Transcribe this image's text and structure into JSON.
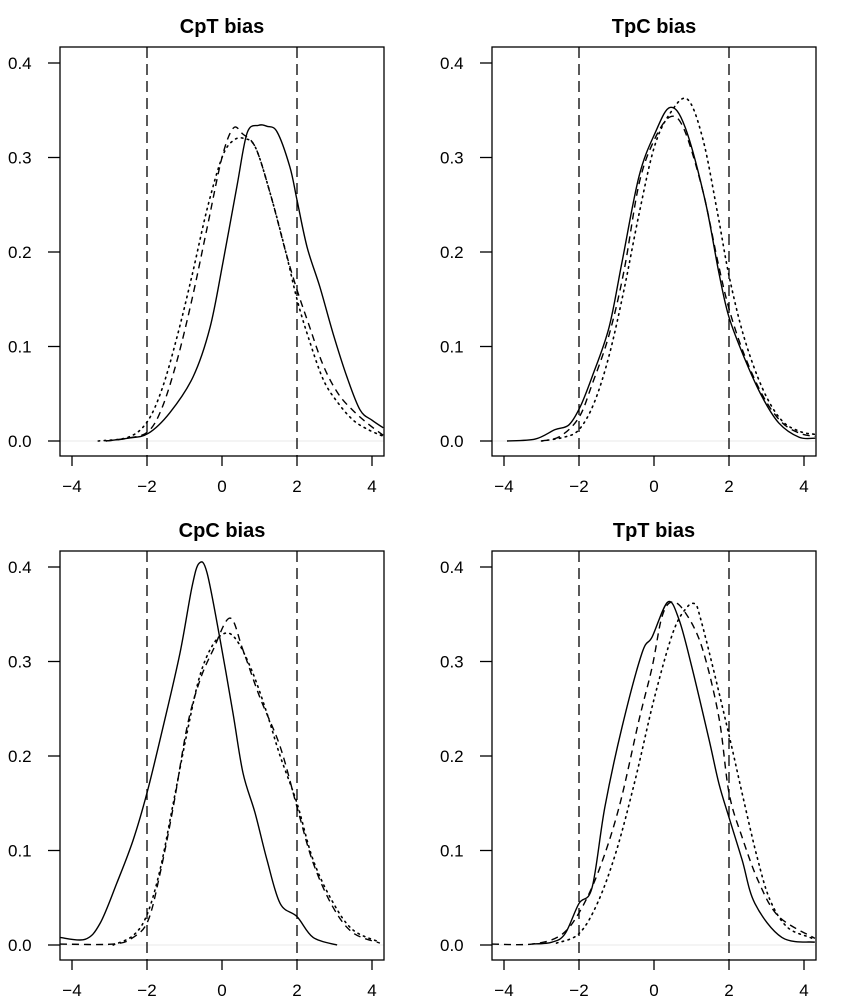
{
  "figure": {
    "layout": "2x2 panels"
  },
  "chart_data": [
    {
      "type": "line",
      "title": "CpT bias",
      "xlabel": "",
      "ylabel": "",
      "xlim": [
        -4.3,
        4.3
      ],
      "ylim": [
        -0.015,
        0.415
      ],
      "x_ticks": [
        -4,
        -2,
        0,
        2,
        4
      ],
      "x_tick_labels": [
        "−4",
        "−2",
        "0",
        "2",
        "4"
      ],
      "y_ticks": [
        0.0,
        0.1,
        0.2,
        0.3,
        0.4
      ],
      "y_tick_labels": [
        "0.0",
        "0.1",
        "0.2",
        "0.3",
        "0.4"
      ],
      "reference_lines": [
        -2,
        2
      ],
      "grid": false,
      "legend": "none",
      "series": [
        {
          "name": "solid",
          "style": "solid",
          "x": [
            -3.1,
            -2.5,
            -1.97,
            -1.39,
            -0.77,
            -0.32,
            0.03,
            0.4,
            0.67,
            0.97,
            1.2,
            1.47,
            1.81,
            2.0,
            2.27,
            2.61,
            2.96,
            3.33,
            3.68,
            4.0,
            4.3
          ],
          "y": [
            0.0,
            0.003,
            0.008,
            0.03,
            0.068,
            0.12,
            0.19,
            0.27,
            0.326,
            0.334,
            0.333,
            0.327,
            0.29,
            0.255,
            0.205,
            0.163,
            0.114,
            0.068,
            0.033,
            0.022,
            0.014
          ]
        },
        {
          "name": "dashed",
          "style": "dashed",
          "x": [
            -3.1,
            -2.5,
            -1.97,
            -1.6,
            -1.2,
            -0.8,
            -0.4,
            0.0,
            0.3,
            0.55,
            0.9,
            1.3,
            1.7,
            2.0,
            2.3,
            2.7,
            3.1,
            3.5,
            3.9,
            4.3
          ],
          "y": [
            0.0,
            0.003,
            0.01,
            0.035,
            0.085,
            0.15,
            0.225,
            0.3,
            0.331,
            0.325,
            0.31,
            0.26,
            0.2,
            0.16,
            0.125,
            0.08,
            0.05,
            0.032,
            0.018,
            0.006
          ]
        },
        {
          "name": "dotted",
          "style": "dotted",
          "x": [
            -3.3,
            -2.5,
            -2.0,
            -1.6,
            -1.2,
            -0.8,
            -0.4,
            0.0,
            0.3,
            0.6,
            0.9,
            1.3,
            1.7,
            2.0,
            2.3,
            2.7,
            3.1,
            3.5,
            3.9,
            4.3
          ],
          "y": [
            0.0,
            0.004,
            0.02,
            0.055,
            0.11,
            0.175,
            0.245,
            0.3,
            0.318,
            0.32,
            0.31,
            0.26,
            0.2,
            0.15,
            0.11,
            0.065,
            0.04,
            0.022,
            0.012,
            0.005
          ]
        }
      ]
    },
    {
      "type": "line",
      "title": "TpC bias",
      "xlabel": "",
      "ylabel": "",
      "xlim": [
        -4.3,
        4.3
      ],
      "ylim": [
        -0.015,
        0.415
      ],
      "x_ticks": [
        -4,
        -2,
        0,
        2,
        4
      ],
      "x_tick_labels": [
        "−4",
        "−2",
        "0",
        "2",
        "4"
      ],
      "y_ticks": [
        0.0,
        0.1,
        0.2,
        0.3,
        0.4
      ],
      "y_tick_labels": [
        "0.0",
        "0.1",
        "0.2",
        "0.3",
        "0.4"
      ],
      "reference_lines": [
        -2,
        2
      ],
      "grid": false,
      "legend": "none",
      "series": [
        {
          "name": "solid",
          "style": "solid",
          "x": [
            -3.92,
            -3.17,
            -2.64,
            -2.27,
            -1.97,
            -1.65,
            -1.2,
            -0.85,
            -0.4,
            0.03,
            0.43,
            0.83,
            1.36,
            1.73,
            2.0,
            2.43,
            2.88,
            3.33,
            3.87,
            4.3
          ],
          "y": [
            0.0,
            0.002,
            0.012,
            0.017,
            0.036,
            0.068,
            0.12,
            0.19,
            0.28,
            0.326,
            0.353,
            0.332,
            0.255,
            0.178,
            0.131,
            0.086,
            0.047,
            0.019,
            0.004,
            0.003
          ]
        },
        {
          "name": "dashed",
          "style": "dashed",
          "x": [
            -3.0,
            -2.5,
            -2.0,
            -1.65,
            -1.2,
            -0.8,
            -0.4,
            0.0,
            0.43,
            0.8,
            1.3,
            1.7,
            2.0,
            2.4,
            2.9,
            3.4,
            3.9,
            4.3
          ],
          "y": [
            0.0,
            0.005,
            0.025,
            0.06,
            0.112,
            0.18,
            0.272,
            0.318,
            0.343,
            0.33,
            0.265,
            0.19,
            0.14,
            0.092,
            0.048,
            0.02,
            0.008,
            0.005
          ]
        },
        {
          "name": "dotted",
          "style": "dotted",
          "x": [
            -3.0,
            -2.4,
            -2.0,
            -1.6,
            -1.2,
            -0.8,
            -0.4,
            0.0,
            0.4,
            0.88,
            1.3,
            1.7,
            2.0,
            2.4,
            2.9,
            3.4,
            3.9,
            4.3
          ],
          "y": [
            0.0,
            0.004,
            0.012,
            0.04,
            0.09,
            0.16,
            0.24,
            0.31,
            0.345,
            0.362,
            0.32,
            0.24,
            0.175,
            0.11,
            0.055,
            0.022,
            0.01,
            0.007
          ]
        }
      ]
    },
    {
      "type": "line",
      "title": "CpC bias",
      "xlabel": "",
      "ylabel": "",
      "xlim": [
        -4.3,
        4.3
      ],
      "ylim": [
        -0.015,
        0.415
      ],
      "x_ticks": [
        -4,
        -2,
        0,
        2,
        4
      ],
      "x_tick_labels": [
        "−4",
        "−2",
        "0",
        "2",
        "4"
      ],
      "y_ticks": [
        0.0,
        0.1,
        0.2,
        0.3,
        0.4
      ],
      "y_tick_labels": [
        "0.0",
        "0.1",
        "0.2",
        "0.3",
        "0.4"
      ],
      "reference_lines": [
        -2,
        2
      ],
      "grid": false,
      "legend": "none",
      "series": [
        {
          "name": "solid",
          "style": "solid",
          "x": [
            -4.32,
            -3.65,
            -3.25,
            -2.8,
            -2.37,
            -2.0,
            -1.57,
            -1.12,
            -0.8,
            -0.61,
            -0.4,
            -0.05,
            0.29,
            0.56,
            0.88,
            1.2,
            1.55,
            2.0,
            2.43,
            3.07
          ],
          "y": [
            0.008,
            0.006,
            0.023,
            0.066,
            0.111,
            0.161,
            0.231,
            0.309,
            0.379,
            0.404,
            0.394,
            0.323,
            0.246,
            0.182,
            0.14,
            0.09,
            0.044,
            0.03,
            0.008,
            0.0
          ]
        },
        {
          "name": "dashed",
          "style": "dashed",
          "x": [
            -4.32,
            -2.9,
            -2.37,
            -1.97,
            -1.65,
            -1.3,
            -0.93,
            -0.59,
            -0.24,
            0.21,
            0.56,
            1.01,
            1.55,
            2.0,
            2.43,
            2.96,
            3.49,
            4.21
          ],
          "y": [
            0.001,
            0.001,
            0.008,
            0.026,
            0.076,
            0.146,
            0.231,
            0.28,
            0.312,
            0.346,
            0.312,
            0.262,
            0.21,
            0.146,
            0.087,
            0.04,
            0.013,
            0.002
          ]
        },
        {
          "name": "dotted",
          "style": "dotted",
          "x": [
            -2.9,
            -2.37,
            -2.0,
            -1.65,
            -1.3,
            -0.93,
            -0.59,
            -0.24,
            0.1,
            0.4,
            0.8,
            1.2,
            1.55,
            2.0,
            2.43,
            2.96,
            3.49,
            4.21
          ],
          "y": [
            0.0,
            0.01,
            0.032,
            0.08,
            0.15,
            0.225,
            0.285,
            0.318,
            0.33,
            0.322,
            0.29,
            0.245,
            0.2,
            0.15,
            0.09,
            0.045,
            0.016,
            0.003
          ]
        }
      ]
    },
    {
      "type": "line",
      "title": "TpT bias",
      "xlabel": "",
      "ylabel": "",
      "xlim": [
        -4.3,
        4.3
      ],
      "ylim": [
        -0.015,
        0.415
      ],
      "x_ticks": [
        -4,
        -2,
        0,
        2,
        4
      ],
      "x_tick_labels": [
        "−4",
        "−2",
        "0",
        "2",
        "4"
      ],
      "y_ticks": [
        0.0,
        0.1,
        0.2,
        0.3,
        0.4
      ],
      "y_tick_labels": [
        "0.0",
        "0.1",
        "0.2",
        "0.3",
        "0.4"
      ],
      "reference_lines": [
        -2,
        2
      ],
      "grid": false,
      "legend": "none",
      "series": [
        {
          "name": "solid",
          "style": "solid",
          "x": [
            -3.25,
            -2.72,
            -2.37,
            -2.0,
            -1.65,
            -1.31,
            -0.85,
            -0.32,
            -0.05,
            0.37,
            0.67,
            1.01,
            1.47,
            1.73,
            2.0,
            2.35,
            2.69,
            3.41,
            4.29
          ],
          "y": [
            0.001,
            0.003,
            0.012,
            0.044,
            0.061,
            0.146,
            0.231,
            0.309,
            0.326,
            0.363,
            0.344,
            0.294,
            0.217,
            0.171,
            0.135,
            0.09,
            0.044,
            0.008,
            0.003
          ]
        },
        {
          "name": "dashed",
          "style": "dashed",
          "x": [
            -4.32,
            -3.25,
            -2.5,
            -2.0,
            -1.47,
            -0.93,
            -0.4,
            -0.05,
            0.21,
            0.48,
            0.83,
            1.28,
            1.73,
            2.0,
            2.35,
            2.8,
            3.33,
            4.29
          ],
          "y": [
            0.001,
            0.001,
            0.01,
            0.034,
            0.079,
            0.146,
            0.238,
            0.294,
            0.347,
            0.363,
            0.352,
            0.315,
            0.241,
            0.161,
            0.114,
            0.066,
            0.03,
            0.007
          ]
        },
        {
          "name": "dotted",
          "style": "dotted",
          "x": [
            -2.6,
            -2.0,
            -1.5,
            -1.0,
            -0.5,
            0.0,
            0.5,
            0.85,
            1.09,
            1.23,
            1.57,
            2.03,
            2.37,
            2.75,
            3.09,
            3.55,
            4.16,
            4.3
          ],
          "y": [
            0.002,
            0.012,
            0.045,
            0.1,
            0.175,
            0.26,
            0.33,
            0.356,
            0.361,
            0.347,
            0.294,
            0.217,
            0.157,
            0.093,
            0.048,
            0.019,
            0.008,
            0.006
          ]
        }
      ]
    }
  ]
}
